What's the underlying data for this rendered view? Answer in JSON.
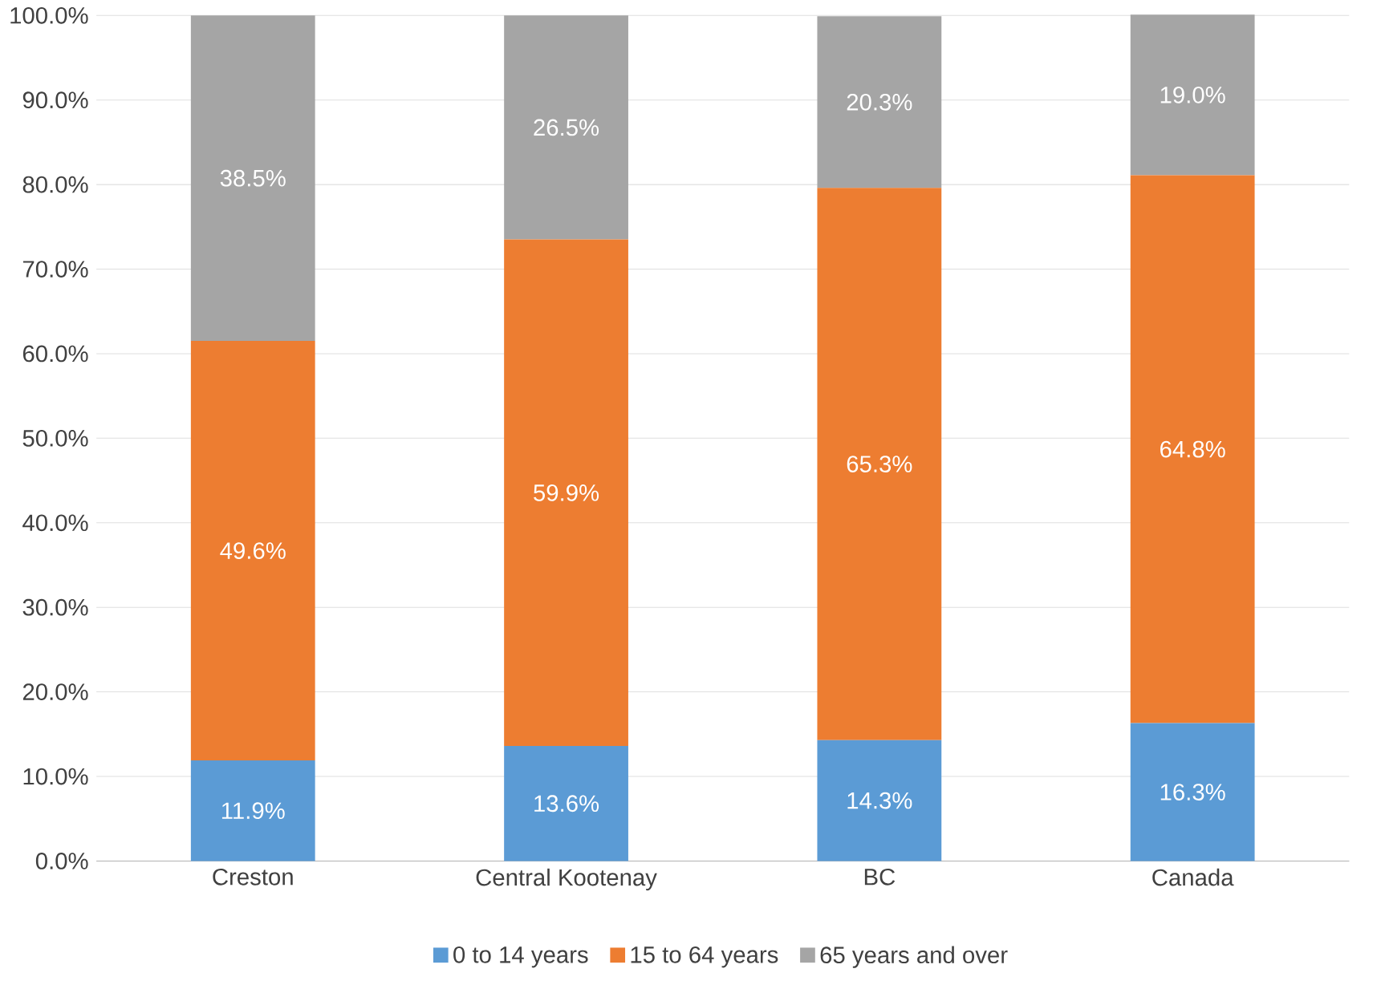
{
  "chart_data": {
    "type": "bar",
    "stacked": true,
    "categories": [
      "Creston",
      "Central Kootenay",
      "BC",
      "Canada"
    ],
    "series": [
      {
        "name": "0 to 14 years",
        "color": "#5b9bd5",
        "values": [
          11.9,
          13.6,
          14.3,
          16.3
        ],
        "value_labels": [
          "11.9%",
          "13.6%",
          "14.3%",
          "16.3%"
        ]
      },
      {
        "name": "15 to 64 years",
        "color": "#ed7d31",
        "values": [
          49.6,
          59.9,
          65.3,
          64.8
        ],
        "value_labels": [
          "49.6%",
          "59.9%",
          "65.3%",
          "64.8%"
        ]
      },
      {
        "name": "65 years and over",
        "color": "#a5a5a5",
        "values": [
          38.5,
          26.5,
          20.3,
          19.0
        ],
        "value_labels": [
          "38.5%",
          "26.5%",
          "20.3%",
          "19.0%"
        ]
      }
    ],
    "ylim": [
      0,
      100
    ],
    "yticks": [
      {
        "value": 0,
        "label": "0.0%"
      },
      {
        "value": 10,
        "label": "10.0%"
      },
      {
        "value": 20,
        "label": "20.0%"
      },
      {
        "value": 30,
        "label": "30.0%"
      },
      {
        "value": 40,
        "label": "40.0%"
      },
      {
        "value": 50,
        "label": "50.0%"
      },
      {
        "value": 60,
        "label": "60.0%"
      },
      {
        "value": 70,
        "label": "70.0%"
      },
      {
        "value": 80,
        "label": "80.0%"
      },
      {
        "value": 90,
        "label": "90.0%"
      },
      {
        "value": 100,
        "label": "100.0%"
      }
    ],
    "grid": "y",
    "legend": "bottom"
  }
}
